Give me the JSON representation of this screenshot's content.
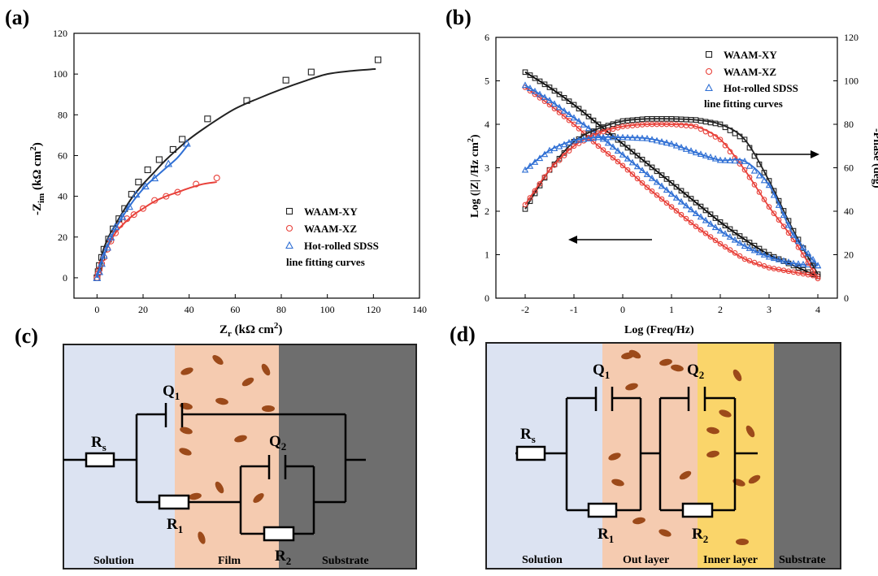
{
  "panels": {
    "a": {
      "label": "(a)"
    },
    "b": {
      "label": "(b)"
    },
    "c": {
      "label": "(c)"
    },
    "d": {
      "label": "(d)"
    }
  },
  "chart_data": [
    {
      "type": "scatter",
      "panel": "a",
      "xlabel": "Zr (kΩ cm²)",
      "ylabel": "-Zim (kΩ cm²)",
      "xlim": [
        -10,
        140
      ],
      "ylim": [
        -10,
        120
      ],
      "xticks": [
        0,
        20,
        40,
        60,
        80,
        100,
        120,
        140
      ],
      "yticks": [
        0,
        20,
        40,
        60,
        80,
        100,
        120
      ],
      "legend_position": "bottom-right",
      "legend_extra": "line fitting curves",
      "series": [
        {
          "name": "WAAM-XY",
          "marker": "square",
          "color": "#222222",
          "points": [
            [
              0,
              0
            ],
            [
              0.5,
              3
            ],
            [
              1,
              6
            ],
            [
              2,
              10
            ],
            [
              3,
              14
            ],
            [
              5,
              19
            ],
            [
              7,
              24
            ],
            [
              9.5,
              29
            ],
            [
              12,
              34
            ],
            [
              15,
              41
            ],
            [
              18,
              47
            ],
            [
              22,
              53
            ],
            [
              27,
              58
            ],
            [
              33,
              63
            ],
            [
              37,
              68
            ],
            [
              48,
              78
            ],
            [
              65,
              87
            ],
            [
              82,
              97
            ],
            [
              93,
              101
            ],
            [
              122,
              107
            ]
          ],
          "fit": [
            [
              0,
              0
            ],
            [
              2,
              11
            ],
            [
              5,
              20
            ],
            [
              10,
              30
            ],
            [
              15,
              39
            ],
            [
              20,
              46
            ],
            [
              25,
              52
            ],
            [
              30,
              58
            ],
            [
              40,
              68
            ],
            [
              50,
              76
            ],
            [
              60,
              83
            ],
            [
              70,
              88
            ],
            [
              80,
              92.5
            ],
            [
              90,
              96.5
            ],
            [
              100,
              100
            ],
            [
              110,
              101.5
            ],
            [
              121,
              102.5
            ]
          ]
        },
        {
          "name": "WAAM-XZ",
          "marker": "circle",
          "color": "#e8413a",
          "points": [
            [
              0,
              0
            ],
            [
              0.5,
              2
            ],
            [
              1,
              4
            ],
            [
              2,
              7
            ],
            [
              3,
              10
            ],
            [
              4.5,
              14
            ],
            [
              6,
              18
            ],
            [
              8,
              22
            ],
            [
              10,
              26
            ],
            [
              13,
              29
            ],
            [
              16,
              31
            ],
            [
              20,
              34
            ],
            [
              25,
              38
            ],
            [
              30,
              40
            ],
            [
              35,
              42
            ],
            [
              43,
              46
            ],
            [
              52,
              49
            ]
          ],
          "fit": [
            [
              0,
              0
            ],
            [
              1,
              5
            ],
            [
              3,
              11
            ],
            [
              5,
              16
            ],
            [
              8,
              22
            ],
            [
              12,
              27
            ],
            [
              16,
              31
            ],
            [
              20,
              34
            ],
            [
              25,
              37.5
            ],
            [
              30,
              40
            ],
            [
              35,
              42
            ],
            [
              40,
              44
            ],
            [
              46,
              46
            ],
            [
              52,
              47
            ]
          ]
        },
        {
          "name": "Hot-rolled SDSS",
          "marker": "triangle",
          "color": "#2f6fd4",
          "points": [
            [
              0,
              0
            ],
            [
              1,
              3
            ],
            [
              2,
              7
            ],
            [
              3,
              11
            ],
            [
              4.5,
              15
            ],
            [
              6,
              20
            ],
            [
              8,
              25
            ],
            [
              11,
              30
            ],
            [
              14,
              35
            ],
            [
              17,
              41
            ],
            [
              21,
              45
            ],
            [
              25,
              49
            ],
            [
              31,
              56
            ],
            [
              39,
              66
            ]
          ],
          "fit": [
            [
              0,
              0
            ],
            [
              2,
              8
            ],
            [
              4,
              14
            ],
            [
              7,
              22
            ],
            [
              10,
              28
            ],
            [
              14,
              35
            ],
            [
              18,
              41
            ],
            [
              22,
              46
            ],
            [
              26,
              50
            ],
            [
              30,
              54
            ],
            [
              35,
              59
            ],
            [
              40,
              66
            ]
          ]
        }
      ]
    },
    {
      "type": "line",
      "panel": "b",
      "xlabel": "Log (Freq/Hz)",
      "ylabel": "Log (|Z| /Hz cm²)",
      "ylabel_right": "-Phase (deg)",
      "xlim": [
        -2.6,
        4.4
      ],
      "ylim": [
        0,
        6
      ],
      "ylim_right": [
        0,
        120
      ],
      "xticks": [
        -2,
        -1,
        0,
        1,
        2,
        3,
        4
      ],
      "yticks": [
        0,
        1,
        2,
        3,
        4,
        5,
        6
      ],
      "yticks_right": [
        0,
        20,
        40,
        60,
        80,
        100,
        120
      ],
      "legend_position": "top-right",
      "legend_extra": "line fitting curves",
      "x": [
        -2,
        -1.5,
        -1,
        -0.5,
        0,
        0.5,
        1,
        1.5,
        2,
        2.5,
        3,
        3.5,
        4
      ],
      "series": [
        {
          "name": "WAAM-XY",
          "kind": "modulus",
          "marker": "square",
          "color": "#222222",
          "values": [
            5.2,
            4.85,
            4.45,
            4.0,
            3.55,
            3.1,
            2.65,
            2.2,
            1.75,
            1.35,
            1.0,
            0.75,
            0.5
          ]
        },
        {
          "name": "WAAM-XZ",
          "kind": "modulus",
          "marker": "circle",
          "color": "#e8413a",
          "values": [
            4.85,
            4.45,
            4.0,
            3.5,
            3.05,
            2.55,
            2.1,
            1.65,
            1.25,
            0.9,
            0.7,
            0.6,
            0.5
          ]
        },
        {
          "name": "Hot-rolled SDSS",
          "kind": "modulus",
          "marker": "triangle",
          "color": "#2f6fd4",
          "values": [
            4.9,
            4.55,
            4.15,
            3.75,
            3.3,
            2.85,
            2.4,
            1.95,
            1.55,
            1.2,
            0.95,
            0.8,
            0.75
          ]
        },
        {
          "name": "WAAM-XY",
          "kind": "phase",
          "marker": "square",
          "color": "#222222",
          "values": [
            41,
            59,
            72,
            78,
            81.5,
            82.5,
            82.5,
            82,
            80,
            73,
            54,
            31,
            11
          ]
        },
        {
          "name": "WAAM-XZ",
          "kind": "phase",
          "marker": "circle",
          "color": "#e8413a",
          "values": [
            43,
            59,
            70,
            76,
            79,
            80,
            80,
            79,
            73,
            59,
            42,
            27,
            9
          ]
        },
        {
          "name": "Hot-rolled SDSS",
          "kind": "phase",
          "marker": "triangle",
          "color": "#2f6fd4",
          "values": [
            59,
            68,
            72.5,
            74,
            74,
            73.5,
            71,
            67,
            63.5,
            63,
            52,
            29,
            15
          ]
        }
      ],
      "arrows": [
        {
          "direction": "right",
          "axis": "phase"
        },
        {
          "direction": "left",
          "axis": "modulus"
        }
      ]
    }
  ],
  "circuit_c": {
    "regions": [
      "Solution",
      "Film",
      "Substrate"
    ],
    "region_colors": [
      "#dce3f2",
      "#f5cbb0",
      "#6e6e6e"
    ],
    "components": {
      "rs": "R",
      "rs_sub": "s",
      "q1": "Q",
      "q1_sub": "1",
      "q2": "Q",
      "q2_sub": "2",
      "r1": "R",
      "r1_sub": "1",
      "r2": "R",
      "r2_sub": "2"
    }
  },
  "circuit_d": {
    "regions": [
      "Solution",
      "Out layer",
      "Inner layer",
      "Substrate"
    ],
    "region_colors": [
      "#dce3f2",
      "#f5cbb0",
      "#fad56a",
      "#6e6e6e"
    ],
    "components": {
      "rs": "R",
      "rs_sub": "s",
      "q1": "Q",
      "q1_sub": "1",
      "q2": "Q",
      "q2_sub": "2",
      "r1": "R",
      "r1_sub": "1",
      "r2": "R",
      "r2_sub": "2"
    }
  }
}
